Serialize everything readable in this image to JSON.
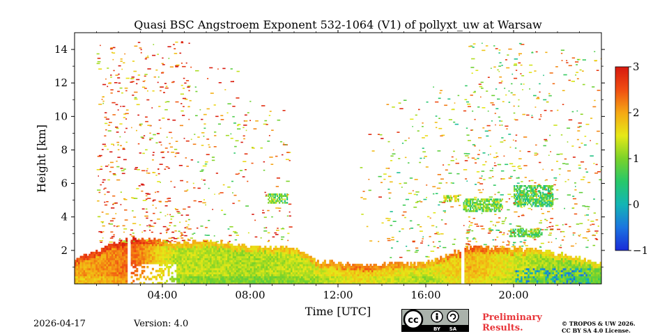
{
  "chart_data": {
    "type": "heatmap",
    "title": "Quasi BSC Angstroem Exponent 532-1064 (V1) of pollyxt_uw at Warsaw",
    "xlabel": "Time [UTC]",
    "ylabel": "Height [km]",
    "xlim_hours": [
      0,
      24
    ],
    "ylim_km": [
      0,
      15
    ],
    "x_ticks": [
      {
        "value": 4,
        "label": "04:00"
      },
      {
        "value": 8,
        "label": "08:00"
      },
      {
        "value": 12,
        "label": "12:00"
      },
      {
        "value": 16,
        "label": "16:00"
      },
      {
        "value": 20,
        "label": "20:00"
      }
    ],
    "y_ticks": [
      {
        "value": 2,
        "label": "2"
      },
      {
        "value": 4,
        "label": "4"
      },
      {
        "value": 6,
        "label": "6"
      },
      {
        "value": 8,
        "label": "8"
      },
      {
        "value": 10,
        "label": "10"
      },
      {
        "value": 12,
        "label": "12"
      },
      {
        "value": 14,
        "label": "14"
      }
    ],
    "colorbar": {
      "range": [
        -1,
        3
      ],
      "ticks": [
        {
          "value": 3,
          "label": "3"
        },
        {
          "value": 2,
          "label": "2"
        },
        {
          "value": 1,
          "label": "1"
        },
        {
          "value": 0,
          "label": "0"
        },
        {
          "value": -1,
          "label": "−1"
        }
      ],
      "colors": [
        "#1a2bd8",
        "#1b74e0",
        "#13b5b5",
        "#27c86a",
        "#7ad22a",
        "#e6e817",
        "#f5a814",
        "#f04e12",
        "#d7190f"
      ]
    },
    "boundary_layer": {
      "description_points": [
        {
          "t": 0.0,
          "top_km": 1.5,
          "value": 2.0
        },
        {
          "t": 1.5,
          "top_km": 2.2,
          "value": 2.1
        },
        {
          "t": 2.6,
          "top_km": 2.7,
          "value": 2.4
        },
        {
          "t": 4.5,
          "top_km": 2.4,
          "value": 1.3
        },
        {
          "t": 6.0,
          "top_km": 2.5,
          "value": 1.3
        },
        {
          "t": 8.0,
          "top_km": 2.2,
          "value": 1.2
        },
        {
          "t": 10.0,
          "top_km": 2.1,
          "value": 1.3
        },
        {
          "t": 11.0,
          "top_km": 1.3,
          "value": 1.4
        },
        {
          "t": 13.0,
          "top_km": 1.1,
          "value": 1.8
        },
        {
          "t": 16.0,
          "top_km": 1.2,
          "value": 1.4
        },
        {
          "t": 18.0,
          "top_km": 2.2,
          "value": 1.9
        },
        {
          "t": 21.0,
          "top_km": 2.0,
          "value": 1.2
        },
        {
          "t": 24.0,
          "top_km": 1.2,
          "value": 1.0
        }
      ]
    },
    "gaps_hours": [
      [
        2.35,
        2.5
      ],
      [
        17.55,
        17.7
      ]
    ],
    "cloud_layers": [
      {
        "t0": 8.8,
        "t1": 9.7,
        "h0": 4.8,
        "h1": 5.3,
        "value": 0.8
      },
      {
        "t0": 16.8,
        "t1": 17.5,
        "h0": 4.9,
        "h1": 5.2,
        "value": 1.3
      },
      {
        "t0": 17.7,
        "t1": 19.5,
        "h0": 4.3,
        "h1": 5.0,
        "value": 0.9
      },
      {
        "t0": 20.0,
        "t1": 21.8,
        "h0": 4.6,
        "h1": 5.8,
        "value": 0.7
      },
      {
        "t0": 19.8,
        "t1": 21.3,
        "h0": 2.8,
        "h1": 3.3,
        "value": 0.8
      }
    ]
  },
  "footer": {
    "date": "2026-04-17",
    "version": "Version: 4.0",
    "preliminary_line1": "Preliminary",
    "preliminary_line2": "Results.",
    "copyright_line1": "© TROPOS & UW 2026.",
    "copyright_line2": "CC BY SA 4.0 License."
  },
  "license_badge": {
    "cc": "cc",
    "by": "BY",
    "sa": "SA"
  }
}
